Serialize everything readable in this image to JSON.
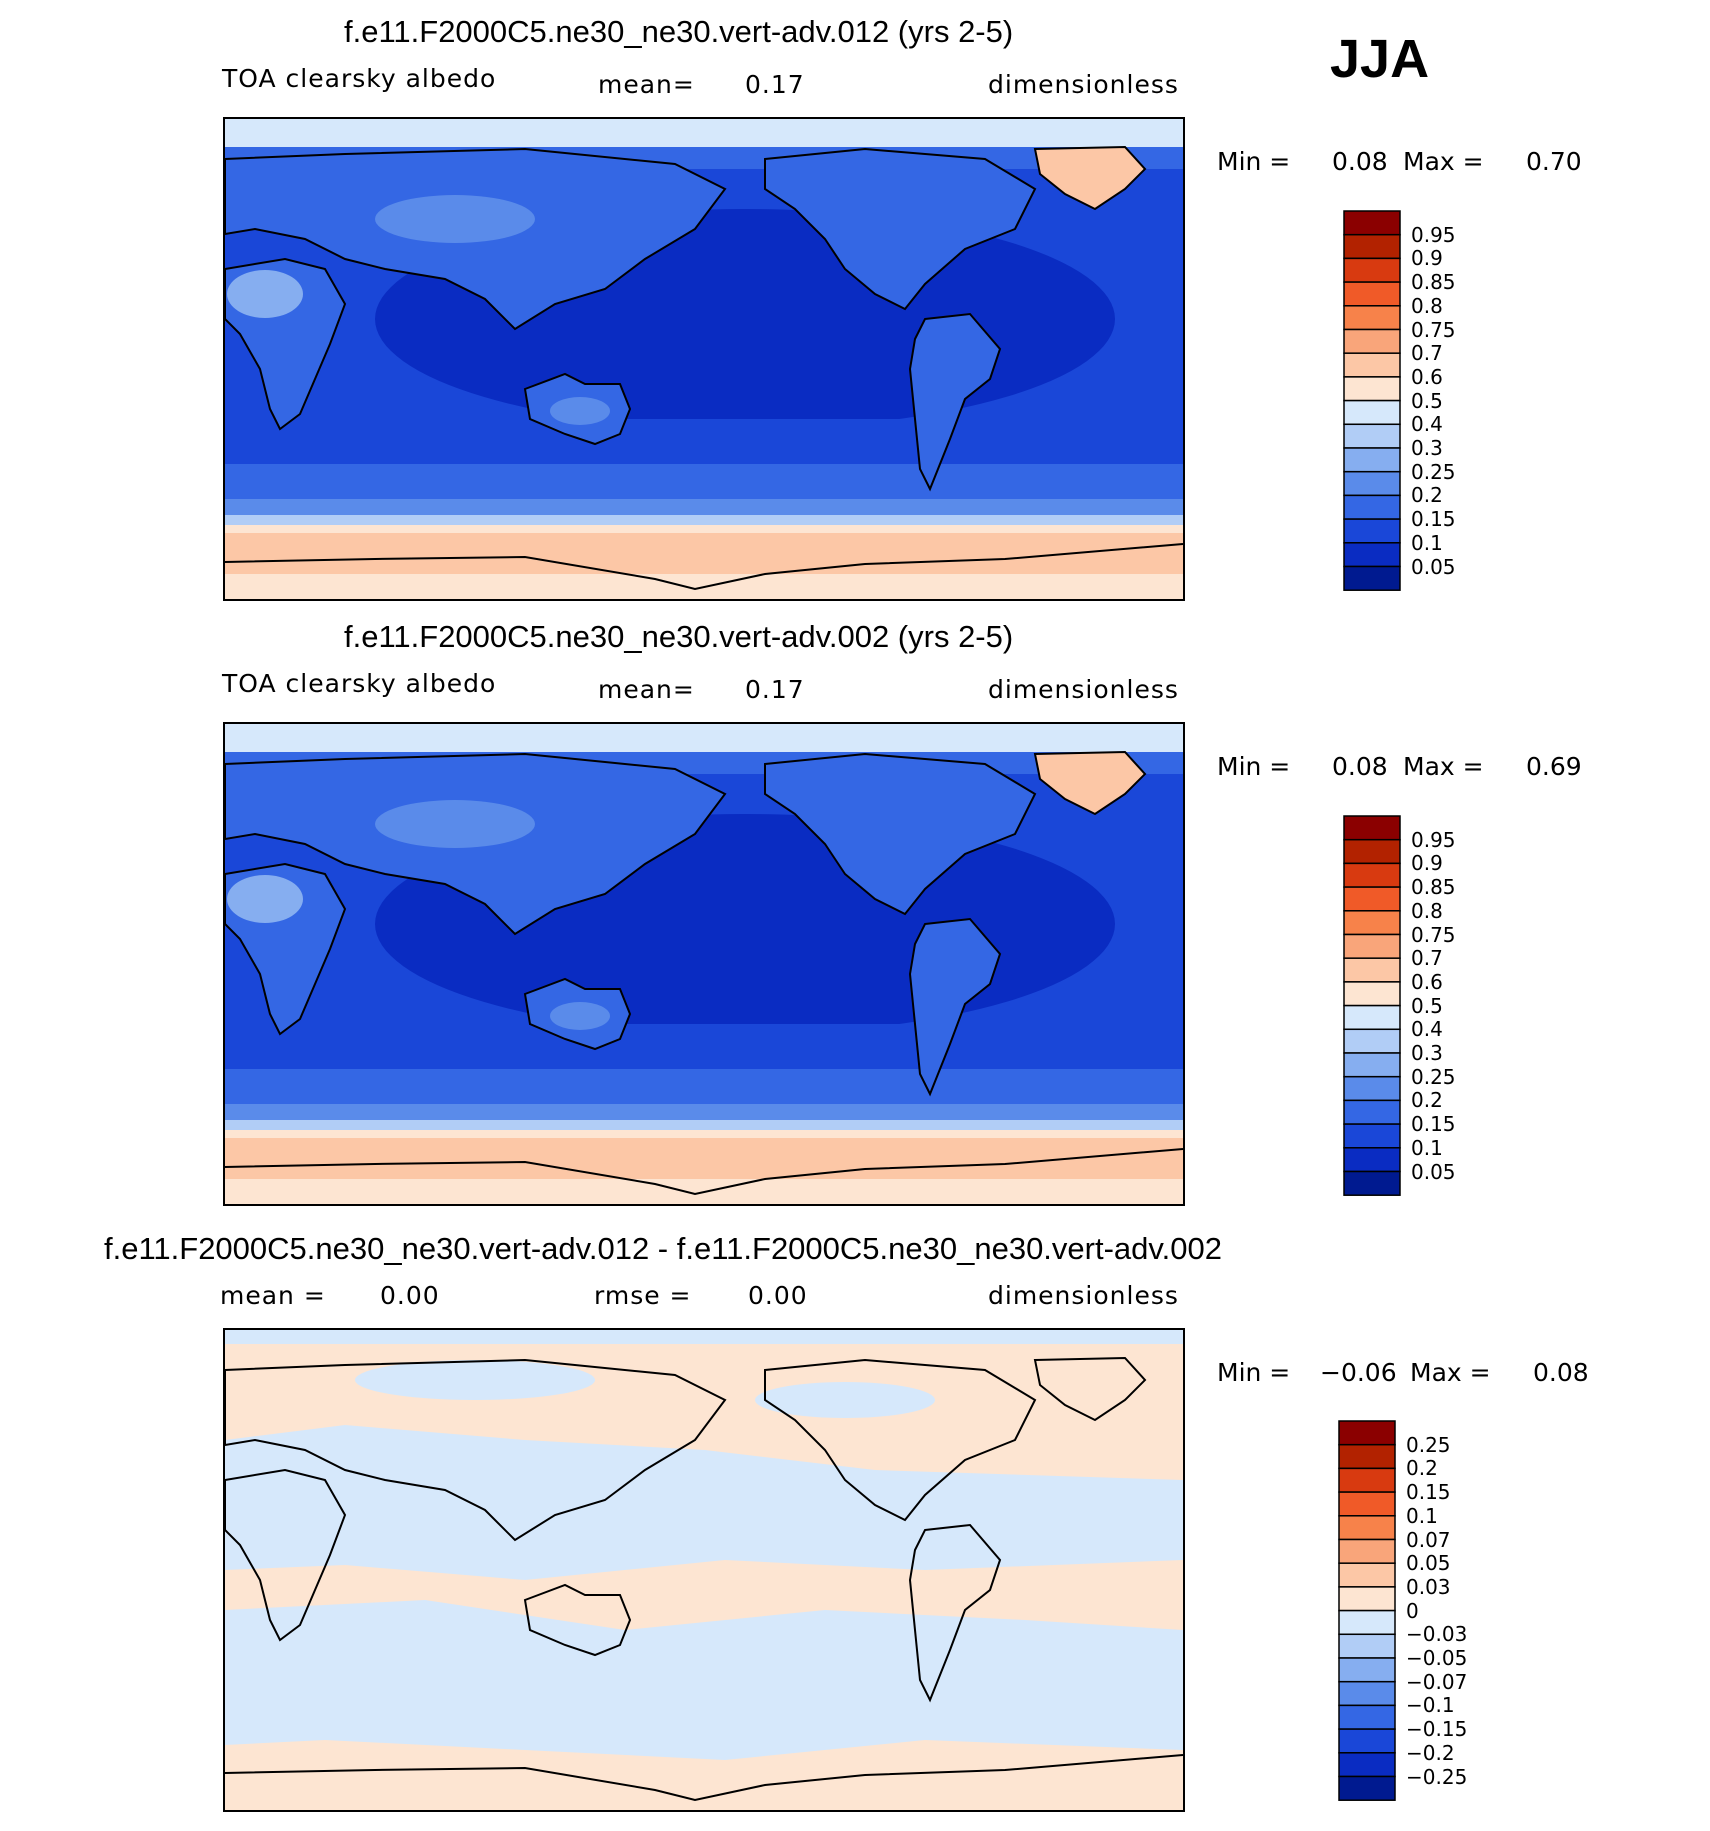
{
  "season": "JJA",
  "panels": [
    {
      "title": "f.e11.F2000C5.ne30_ne30.vert-adv.012 (yrs 2-5)",
      "variable": "TOA clearsky albedo",
      "mean_label": "mean=",
      "mean_value": "0.17",
      "units": "dimensionless",
      "min_label": "Min =",
      "min_value": "0.08",
      "max_label": "Max =",
      "max_value": "0.70",
      "colorbar": {
        "labels": [
          "0.95",
          "0.9",
          "0.85",
          "0.8",
          "0.75",
          "0.7",
          "0.6",
          "0.5",
          "0.4",
          "0.3",
          "0.25",
          "0.2",
          "0.15",
          "0.1",
          "0.05"
        ],
        "colors": [
          "#8b0000",
          "#b22200",
          "#d83a10",
          "#f05a28",
          "#f7824a",
          "#f9a57a",
          "#fcc7a6",
          "#fde5d2",
          "#d6e8fb",
          "#b1cdf6",
          "#86aef0",
          "#5a8bea",
          "#3467e4",
          "#1a47d8",
          "#0a2cc2",
          "#001a90"
        ]
      }
    },
    {
      "title": "f.e11.F2000C5.ne30_ne30.vert-adv.002 (yrs 2-5)",
      "variable": "TOA clearsky albedo",
      "mean_label": "mean=",
      "mean_value": "0.17",
      "units": "dimensionless",
      "min_label": "Min =",
      "min_value": "0.08",
      "max_label": "Max =",
      "max_value": "0.69",
      "colorbar": {
        "labels": [
          "0.95",
          "0.9",
          "0.85",
          "0.8",
          "0.75",
          "0.7",
          "0.6",
          "0.5",
          "0.4",
          "0.3",
          "0.25",
          "0.2",
          "0.15",
          "0.1",
          "0.05"
        ],
        "colors": [
          "#8b0000",
          "#b22200",
          "#d83a10",
          "#f05a28",
          "#f7824a",
          "#f9a57a",
          "#fcc7a6",
          "#fde5d2",
          "#d6e8fb",
          "#b1cdf6",
          "#86aef0",
          "#5a8bea",
          "#3467e4",
          "#1a47d8",
          "#0a2cc2",
          "#001a90"
        ]
      }
    },
    {
      "title": "f.e11.F2000C5.ne30_ne30.vert-adv.012 - f.e11.F2000C5.ne30_ne30.vert-adv.002",
      "mean_label": "mean =",
      "mean_value": "0.00",
      "rmse_label": "rmse =",
      "rmse_value": "0.00",
      "units": "dimensionless",
      "min_label": "Min =",
      "min_value": "−0.06",
      "max_label": "Max =",
      "max_value": "0.08",
      "colorbar": {
        "labels": [
          "0.25",
          "0.2",
          "0.15",
          "0.1",
          "0.07",
          "0.05",
          "0.03",
          "0",
          "−0.03",
          "−0.05",
          "−0.07",
          "−0.1",
          "−0.15",
          "−0.2",
          "−0.25"
        ],
        "colors": [
          "#8b0000",
          "#b22200",
          "#d83a10",
          "#f05a28",
          "#f7824a",
          "#f9a57a",
          "#fcc7a6",
          "#fde5d2",
          "#d6e8fb",
          "#b1cdf6",
          "#86aef0",
          "#5a8bea",
          "#3467e4",
          "#1a47d8",
          "#0a2cc2",
          "#001a90"
        ]
      }
    }
  ]
}
